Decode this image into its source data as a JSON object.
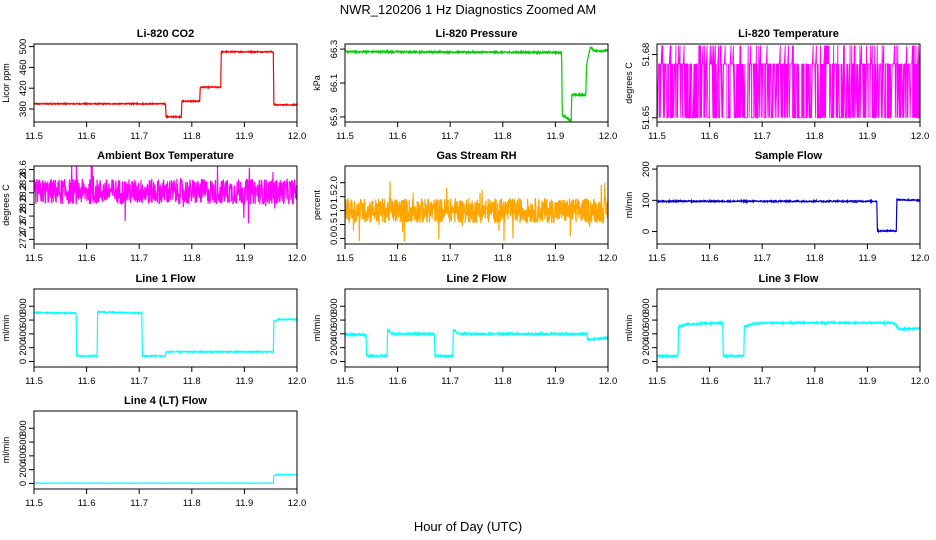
{
  "figure": {
    "title": "NWR_120206  1 Hz Diagnostics Zoomed AM",
    "xlabel": "Hour of Day (UTC)"
  },
  "chart_data": [
    {
      "type": "line",
      "title": "Li-820 CO2",
      "ylabel": "Licor ppm",
      "color": "#ff0000",
      "xlim": [
        11.5,
        12.0
      ],
      "ylim": [
        355,
        505
      ],
      "xticks": [
        "11.5",
        "11.6",
        "11.7",
        "11.8",
        "11.9",
        "12.0"
      ],
      "yticks": [
        {
          "v": 380,
          "t": "380"
        },
        {
          "v": 420,
          "t": "420"
        },
        {
          "v": 460,
          "t": "460"
        },
        {
          "v": 500,
          "t": "500"
        }
      ],
      "series": [
        {
          "points": [
            [
              11.5,
              390
            ],
            [
              11.75,
              390
            ],
            [
              11.751,
              365
            ],
            [
              11.78,
              365
            ],
            [
              11.781,
              395
            ],
            [
              11.815,
              395
            ],
            [
              11.816,
              422
            ],
            [
              11.855,
              422
            ],
            [
              11.856,
              490
            ],
            [
              11.955,
              490
            ],
            [
              11.956,
              388
            ],
            [
              12.0,
              388
            ]
          ],
          "noise": 1
        }
      ]
    },
    {
      "type": "line",
      "title": "Li-820 Pressure",
      "ylabel": "kPa",
      "color": "#00cc00",
      "xlim": [
        11.5,
        12.0
      ],
      "ylim": [
        65.87,
        66.33
      ],
      "xticks": [
        "11.5",
        "11.6",
        "11.7",
        "11.8",
        "11.9",
        "12.0"
      ],
      "yticks": [
        {
          "v": 65.9,
          "t": "65.9"
        },
        {
          "v": 66.1,
          "t": "66.1"
        },
        {
          "v": 66.3,
          "t": "66.3"
        }
      ],
      "series": [
        {
          "points": [
            [
              11.5,
              66.285
            ],
            [
              11.9,
              66.28
            ],
            [
              11.912,
              66.28
            ],
            [
              11.913,
              65.91
            ],
            [
              11.93,
              65.88
            ],
            [
              11.931,
              66.03
            ],
            [
              11.958,
              66.03
            ],
            [
              11.959,
              66.2
            ],
            [
              11.966,
              66.31
            ],
            [
              11.975,
              66.29
            ],
            [
              12.0,
              66.29
            ]
          ],
          "noise": 0.005
        }
      ]
    },
    {
      "type": "line",
      "title": "Li-820 Temperature",
      "ylabel": "degrees C",
      "color": "#ff00ff",
      "xlim": [
        11.5,
        12.0
      ],
      "ylim": [
        51.648,
        51.685
      ],
      "xticks": [
        "11.5",
        "11.6",
        "11.7",
        "11.8",
        "11.9",
        "12.0"
      ],
      "yticks": [
        {
          "v": 51.65,
          "t": "51.65"
        },
        {
          "v": 51.68,
          "t": "51.68"
        }
      ],
      "series": [
        {
          "points": [
            [
              11.5,
              51.666
            ]
          ],
          "mode": "digital",
          "levels": [
            51.65,
            51.6755,
            51.6843
          ]
        }
      ]
    },
    {
      "type": "line",
      "title": "Ambient Box Temperature",
      "ylabel": "degrees C",
      "color": "#ff00ff",
      "xlim": [
        11.5,
        12.0
      ],
      "ylim": [
        27.32,
        28.66
      ],
      "xticks": [
        "11.5",
        "11.6",
        "11.7",
        "11.8",
        "11.9",
        "12.0"
      ],
      "yticks": [
        {
          "v": 27.4,
          "t": "27.4"
        },
        {
          "v": 27.6,
          "t": "27.6"
        },
        {
          "v": 27.8,
          "t": "27.8"
        },
        {
          "v": 28.0,
          "t": "28.0"
        },
        {
          "v": 28.2,
          "t": "28.2"
        },
        {
          "v": 28.4,
          "t": "28.4"
        },
        {
          "v": 28.6,
          "t": "28.6"
        }
      ],
      "series": [
        {
          "points": [
            [
              11.5,
              28.22
            ],
            [
              12.0,
              28.22
            ]
          ],
          "noise": 0.22,
          "spikes": true
        }
      ]
    },
    {
      "type": "line",
      "title": "Gas Stream RH",
      "ylabel": "percent",
      "color": "#ffa500",
      "xlim": [
        11.5,
        12.0
      ],
      "ylim": [
        -0.2,
        2.6
      ],
      "xticks": [
        "11.5",
        "11.6",
        "11.7",
        "11.8",
        "11.9",
        "12.0"
      ],
      "yticks": [
        {
          "v": 0.0,
          "t": "0.0"
        },
        {
          "v": 0.5,
          "t": "0.5"
        },
        {
          "v": 1.0,
          "t": "1.0"
        },
        {
          "v": 1.5,
          "t": "1.5"
        },
        {
          "v": 2.0,
          "t": "2.0"
        }
      ],
      "series": [
        {
          "points": [
            [
              11.5,
              1.0
            ],
            [
              12.0,
              1.0
            ]
          ],
          "noise": 0.45,
          "spikes": true
        }
      ]
    },
    {
      "type": "line",
      "title": "Sample Flow",
      "ylabel": "ml/min",
      "color": "#0000cc",
      "xlim": [
        11.5,
        12.0
      ],
      "ylim": [
        -40,
        210
      ],
      "xticks": [
        "11.5",
        "11.6",
        "11.7",
        "11.8",
        "11.9",
        "12.0"
      ],
      "yticks": [
        {
          "v": 0,
          "t": "0"
        },
        {
          "v": 100,
          "t": "100"
        },
        {
          "v": 200,
          "t": "200"
        }
      ],
      "series": [
        {
          "points": [
            [
              11.5,
              97
            ],
            [
              11.918,
              97
            ],
            [
              11.919,
              2
            ],
            [
              11.955,
              2
            ],
            [
              11.956,
              102
            ],
            [
              12.0,
              100
            ]
          ],
          "noise": 2
        }
      ]
    },
    {
      "type": "line",
      "title": "Line 1 Flow",
      "ylabel": "ml/min",
      "color": "#00ffff",
      "xlim": [
        11.5,
        12.0
      ],
      "ylim": [
        -80,
        1050
      ],
      "xticks": [
        "11.5",
        "11.6",
        "11.7",
        "11.8",
        "11.9",
        "12.0"
      ],
      "yticks": [
        {
          "v": 0,
          "t": "0"
        },
        {
          "v": 200,
          "t": "200"
        },
        {
          "v": 400,
          "t": "400"
        },
        {
          "v": 600,
          "t": "600"
        },
        {
          "v": 800,
          "t": "800"
        }
      ],
      "series": [
        {
          "points": [
            [
              11.5,
              710
            ],
            [
              11.58,
              700
            ],
            [
              11.581,
              80
            ],
            [
              11.62,
              80
            ],
            [
              11.621,
              720
            ],
            [
              11.705,
              700
            ],
            [
              11.706,
              80
            ],
            [
              11.75,
              80
            ],
            [
              11.751,
              140
            ],
            [
              11.955,
              140
            ],
            [
              11.956,
              580
            ],
            [
              11.965,
              610
            ],
            [
              12.0,
              610
            ]
          ],
          "noise": 8
        }
      ]
    },
    {
      "type": "line",
      "title": "Line 2 Flow",
      "ylabel": "ml/min",
      "color": "#00ffff",
      "xlim": [
        11.5,
        12.0
      ],
      "ylim": [
        -80,
        1050
      ],
      "xticks": [
        "11.5",
        "11.6",
        "11.7",
        "11.8",
        "11.9",
        "12.0"
      ],
      "yticks": [
        {
          "v": 0,
          "t": "0"
        },
        {
          "v": 200,
          "t": "200"
        },
        {
          "v": 400,
          "t": "400"
        },
        {
          "v": 600,
          "t": "600"
        },
        {
          "v": 800,
          "t": "800"
        }
      ],
      "series": [
        {
          "points": [
            [
              11.5,
              390
            ],
            [
              11.54,
              390
            ],
            [
              11.541,
              80
            ],
            [
              11.58,
              80
            ],
            [
              11.581,
              460
            ],
            [
              11.59,
              400
            ],
            [
              11.67,
              400
            ],
            [
              11.671,
              80
            ],
            [
              11.705,
              80
            ],
            [
              11.706,
              460
            ],
            [
              11.715,
              400
            ],
            [
              11.96,
              400
            ],
            [
              11.961,
              320
            ],
            [
              12.0,
              340
            ]
          ],
          "noise": 14
        }
      ]
    },
    {
      "type": "line",
      "title": "Line 3 Flow",
      "ylabel": "ml/min",
      "color": "#00ffff",
      "xlim": [
        11.5,
        12.0
      ],
      "ylim": [
        -80,
        1050
      ],
      "xticks": [
        "11.5",
        "11.6",
        "11.7",
        "11.8",
        "11.9",
        "12.0"
      ],
      "yticks": [
        {
          "v": 0,
          "t": "0"
        },
        {
          "v": 200,
          "t": "200"
        },
        {
          "v": 400,
          "t": "400"
        },
        {
          "v": 600,
          "t": "600"
        },
        {
          "v": 800,
          "t": "800"
        }
      ],
      "series": [
        {
          "points": [
            [
              11.5,
              80
            ],
            [
              11.54,
              80
            ],
            [
              11.541,
              510
            ],
            [
              11.56,
              540
            ],
            [
              11.625,
              560
            ],
            [
              11.626,
              80
            ],
            [
              11.665,
              80
            ],
            [
              11.666,
              500
            ],
            [
              11.68,
              540
            ],
            [
              11.7,
              560
            ],
            [
              11.95,
              560
            ],
            [
              11.96,
              470
            ],
            [
              12.0,
              480
            ]
          ],
          "noise": 12
        }
      ]
    },
    {
      "type": "line",
      "title": "Line 4 (LT) Flow",
      "ylabel": "ml/min",
      "color": "#00ffff",
      "xlim": [
        11.5,
        12.0
      ],
      "ylim": [
        -80,
        1050
      ],
      "xticks": [
        "11.5",
        "11.6",
        "11.7",
        "11.8",
        "11.9",
        "12.0"
      ],
      "yticks": [
        {
          "v": 0,
          "t": "0"
        },
        {
          "v": 200,
          "t": "200"
        },
        {
          "v": 400,
          "t": "400"
        },
        {
          "v": 600,
          "t": "600"
        },
        {
          "v": 800,
          "t": "800"
        }
      ],
      "series": [
        {
          "points": [
            [
              11.5,
              5
            ],
            [
              11.955,
              5
            ],
            [
              11.956,
              110
            ],
            [
              11.96,
              130
            ],
            [
              12.0,
              125
            ]
          ],
          "noise": 2
        }
      ]
    }
  ]
}
